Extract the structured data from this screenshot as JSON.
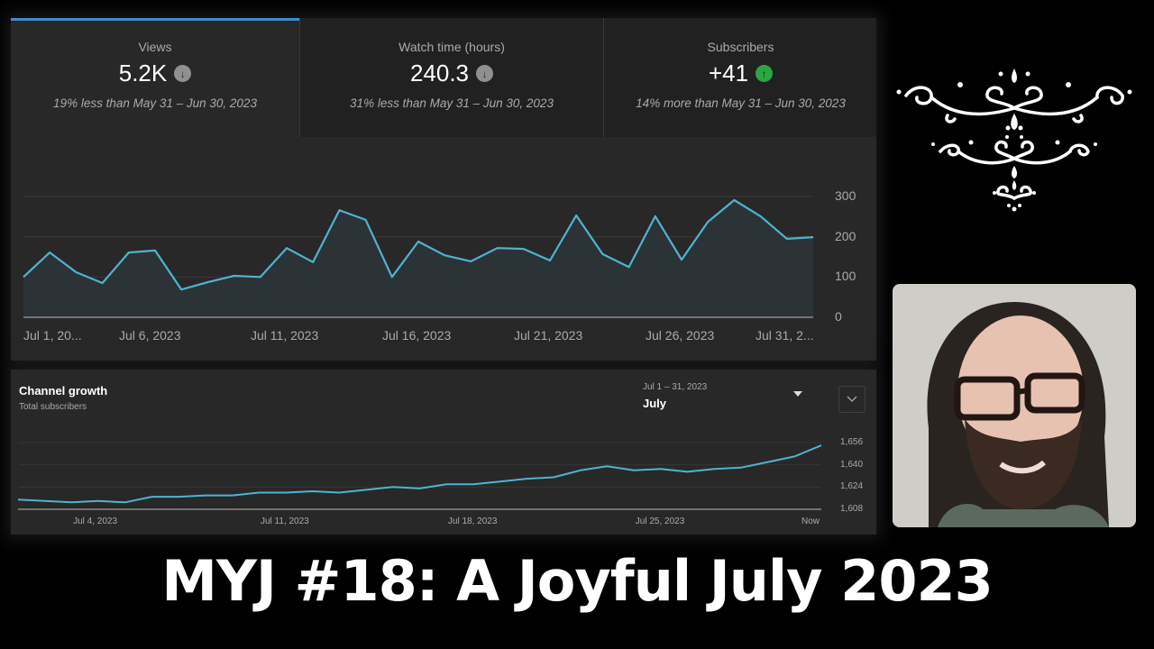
{
  "metrics": [
    {
      "label": "Views",
      "value": "5.2K",
      "trend": "down",
      "trend_icon": "arrow-down-circle-icon",
      "comparison": "19% less than May 31 – Jun 30, 2023",
      "active": true
    },
    {
      "label": "Watch time (hours)",
      "value": "240.3",
      "trend": "down",
      "trend_icon": "arrow-down-circle-icon",
      "comparison": "31% less than May 31 – Jun 30, 2023",
      "active": false
    },
    {
      "label": "Subscribers",
      "value": "+41",
      "trend": "up",
      "trend_icon": "arrow-up-circle-icon",
      "comparison": "14% more than May 31 – Jun 30, 2023",
      "active": false
    }
  ],
  "colors": {
    "accent": "#3ea6ff",
    "line": "#4fb3d1",
    "fill": "#2c3336",
    "trend_up": "#2ba640",
    "trend_down": "#909090",
    "panel_bg": "#282828"
  },
  "views_chart": {
    "x_labels": [
      "Jul 1, 20...",
      "Jul 6, 2023",
      "Jul 11, 2023",
      "Jul 16, 2023",
      "Jul 21, 2023",
      "Jul 26, 2023",
      "Jul 31, 2..."
    ],
    "y_labels": [
      "300",
      "200",
      "100",
      "0"
    ]
  },
  "channel_growth": {
    "title": "Channel growth",
    "subtitle": "Total subscribers",
    "date_range": "Jul 1 – 31, 2023",
    "period": "July",
    "x_labels": [
      "Jul 4, 2023",
      "Jul 11, 2023",
      "Jul 18, 2023",
      "Jul 25, 2023",
      "Now"
    ],
    "y_labels": [
      "1,656",
      "1,640",
      "1,624",
      "1,608"
    ]
  },
  "title": "MYJ #18: A Joyful July 2023",
  "chart_data": [
    {
      "type": "area",
      "title": "Views",
      "xlabel": "",
      "ylabel": "Views",
      "x": [
        "Jul 1",
        "Jul 2",
        "Jul 3",
        "Jul 4",
        "Jul 5",
        "Jul 6",
        "Jul 7",
        "Jul 8",
        "Jul 9",
        "Jul 10",
        "Jul 11",
        "Jul 12",
        "Jul 13",
        "Jul 14",
        "Jul 15",
        "Jul 16",
        "Jul 17",
        "Jul 18",
        "Jul 19",
        "Jul 20",
        "Jul 21",
        "Jul 22",
        "Jul 23",
        "Jul 24",
        "Jul 25",
        "Jul 26",
        "Jul 27",
        "Jul 28",
        "Jul 29",
        "Jul 30",
        "Jul 31"
      ],
      "values": [
        100,
        161,
        112,
        85,
        161,
        166,
        69,
        87,
        103,
        100,
        172,
        137,
        266,
        242,
        100,
        188,
        154,
        139,
        172,
        170,
        141,
        253,
        157,
        125,
        251,
        143,
        237,
        291,
        251,
        195,
        199
      ],
      "x_tick_labels": [
        "Jul 1, 20...",
        "Jul 6, 2023",
        "Jul 11, 2023",
        "Jul 16, 2023",
        "Jul 21, 2023",
        "Jul 26, 2023",
        "Jul 31, 2..."
      ],
      "y_ticks": [
        0,
        100,
        200,
        300
      ],
      "ylim": [
        0,
        300
      ],
      "grid": true,
      "y_axis_position": "right"
    },
    {
      "type": "line",
      "title": "Channel growth",
      "subtitle": "Total subscribers",
      "x": [
        "Jul 1",
        "Jul 2",
        "Jul 3",
        "Jul 4",
        "Jul 5",
        "Jul 6",
        "Jul 7",
        "Jul 8",
        "Jul 9",
        "Jul 10",
        "Jul 11",
        "Jul 12",
        "Jul 13",
        "Jul 14",
        "Jul 15",
        "Jul 16",
        "Jul 17",
        "Jul 18",
        "Jul 19",
        "Jul 20",
        "Jul 21",
        "Jul 22",
        "Jul 23",
        "Jul 24",
        "Jul 25",
        "Jul 26",
        "Jul 27",
        "Jul 28",
        "Jul 29",
        "Jul 30",
        "Now"
      ],
      "values": [
        1615,
        1614,
        1613,
        1614,
        1613,
        1617,
        1617,
        1618,
        1618,
        1620,
        1620,
        1621,
        1620,
        1622,
        1624,
        1623,
        1626,
        1626,
        1628,
        1630,
        1631,
        1636,
        1639,
        1636,
        1637,
        1635,
        1637,
        1638,
        1642,
        1646,
        1654
      ],
      "x_tick_labels": [
        "Jul 4, 2023",
        "Jul 11, 2023",
        "Jul 18, 2023",
        "Jul 25, 2023",
        "Now"
      ],
      "y_ticks": [
        1608,
        1624,
        1640,
        1656
      ],
      "ylim": [
        1608,
        1656
      ],
      "grid": true,
      "y_axis_position": "right"
    }
  ]
}
